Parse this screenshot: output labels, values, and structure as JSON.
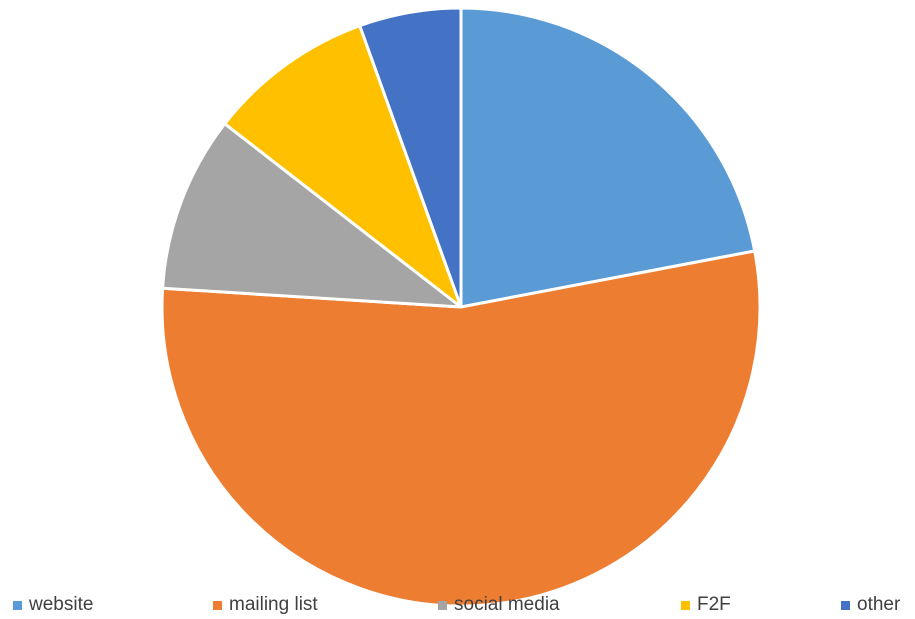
{
  "chart_data": {
    "type": "pie",
    "title": "",
    "categories": [
      "website",
      "mailing list",
      "social media",
      "F2F",
      "other"
    ],
    "values": [
      22,
      54,
      9.5,
      9,
      5.5
    ],
    "colors": [
      "#5B9BD5",
      "#ED7D31",
      "#A5A5A5",
      "#FFC000",
      "#4472C4"
    ],
    "start_angle_deg": 0,
    "direction": "clockwise",
    "legend_position": "bottom"
  }
}
